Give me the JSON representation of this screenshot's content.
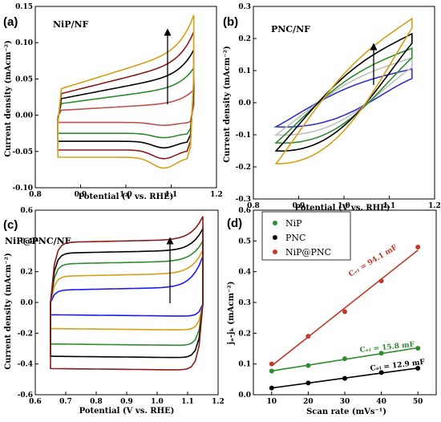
{
  "chart_data": [
    {
      "type": "line",
      "panel_tag": "(a)",
      "title": "NiP/NF",
      "xlabel": "Potential (V vs. RHE)",
      "ylabel": "Current density (mAcm⁻²)",
      "xlim": [
        0.8,
        1.2
      ],
      "ylim": [
        -0.1,
        0.15
      ],
      "xticks": [
        0.8,
        0.9,
        1.0,
        1.1,
        1.2
      ],
      "yticks": [
        -0.1,
        -0.05,
        0.0,
        0.05,
        0.1,
        0.15
      ],
      "xtick_labels": [
        "0.8",
        "0.9",
        "1.0",
        "1.1",
        "1.2"
      ],
      "ytick_labels": [
        "-0.10",
        "-0.05",
        "0.00",
        "0.05",
        "0.10",
        "0.15"
      ],
      "x_range": [
        0.85,
        1.15
      ],
      "series": [
        {
          "color": "#c0504d",
          "upper_mid": 0.012,
          "upper_end": 0.035,
          "lower_mid": -0.01,
          "lower_min": -0.014
        },
        {
          "color": "#2e8b2e",
          "upper_mid": 0.028,
          "upper_end": 0.065,
          "lower_mid": -0.025,
          "lower_min": -0.031
        },
        {
          "color": "#000000",
          "upper_mid": 0.04,
          "upper_end": 0.09,
          "lower_mid": -0.036,
          "lower_min": -0.045
        },
        {
          "color": "#8b1a1a",
          "upper_mid": 0.052,
          "upper_end": 0.115,
          "lower_mid": -0.048,
          "lower_min": -0.06
        },
        {
          "color": "#d4a017",
          "upper_mid": 0.064,
          "upper_end": 0.138,
          "lower_mid": -0.058,
          "lower_min": -0.073
        }
      ]
    },
    {
      "type": "line",
      "panel_tag": "(b)",
      "title": "PNC/NF",
      "xlabel": "Potential (V vs. RHE)",
      "ylabel": "Current density (mAcm⁻²)",
      "xlim": [
        0.8,
        1.2
      ],
      "ylim": [
        -0.3,
        0.3
      ],
      "xticks": [
        0.8,
        0.9,
        1.0,
        1.1,
        1.2
      ],
      "yticks": [
        -0.3,
        -0.2,
        -0.1,
        0.0,
        0.1,
        0.2,
        0.3
      ],
      "xtick_labels": [
        "0.8",
        "0.9",
        "1.0",
        "1.1",
        "1.2"
      ],
      "ytick_labels": [
        "-0.3",
        "-0.2",
        "-0.1",
        "0.0",
        "0.1",
        "0.2",
        "0.3"
      ],
      "x_range": [
        0.85,
        1.15
      ],
      "series": [
        {
          "color": "#3333cc",
          "low_start": -0.075,
          "top_end": 0.105
        },
        {
          "color": "#c0c0c0",
          "low_start": -0.1,
          "top_end": 0.14
        },
        {
          "color": "#2e8b2e",
          "low_start": -0.125,
          "top_end": 0.17
        },
        {
          "color": "#000000",
          "low_start": -0.15,
          "top_end": 0.215
        },
        {
          "color": "#d4a017",
          "low_start": -0.19,
          "top_end": 0.262
        }
      ]
    },
    {
      "type": "line",
      "panel_tag": "(c)",
      "title": "NiP@PNC/NF",
      "xlabel": "Potential (V vs. RHE)",
      "ylabel": "Current density (mAcm⁻²)",
      "xlim": [
        0.6,
        1.2
      ],
      "ylim": [
        -0.6,
        0.6
      ],
      "xticks": [
        0.6,
        0.7,
        0.8,
        0.9,
        1.0,
        1.1,
        1.2
      ],
      "yticks": [
        -0.6,
        -0.4,
        -0.2,
        0.0,
        0.2,
        0.4,
        0.6
      ],
      "xtick_labels": [
        "0.6",
        "0.7",
        "0.8",
        "0.9",
        "1.0",
        "1.1",
        "1.2"
      ],
      "ytick_labels": [
        "-0.6",
        "-0.4",
        "-0.2",
        "0.0",
        "0.2",
        "0.4",
        "0.6"
      ],
      "x_range": [
        0.65,
        1.15
      ],
      "series": [
        {
          "color": "#1a1aff",
          "upper": 0.08,
          "lower": -0.08,
          "end": 0.28
        },
        {
          "color": "#d4a017",
          "upper": 0.17,
          "lower": -0.17,
          "end": 0.32
        },
        {
          "color": "#2e8b2e",
          "upper": 0.25,
          "lower": -0.27,
          "end": 0.38
        },
        {
          "color": "#000000",
          "upper": 0.32,
          "lower": -0.35,
          "end": 0.46
        },
        {
          "color": "#8b1a1a",
          "upper": 0.39,
          "lower": -0.43,
          "end": 0.54
        }
      ]
    },
    {
      "type": "scatter",
      "panel_tag": "(d)",
      "xlabel": "Scan rate (mVs⁻¹)",
      "ylabel": "jₐ-jₖ (mAcm⁻²)",
      "xlim": [
        5,
        55
      ],
      "ylim": [
        0.0,
        0.6
      ],
      "xticks": [
        10,
        20,
        30,
        40,
        50
      ],
      "yticks": [
        0.0,
        0.1,
        0.2,
        0.3,
        0.4,
        0.5,
        0.6
      ],
      "xtick_labels": [
        "10",
        "20",
        "30",
        "40",
        "50"
      ],
      "ytick_labels": [
        "0.0",
        "0.1",
        "0.2",
        "0.3",
        "0.4",
        "0.5",
        "0.6"
      ],
      "x": [
        10,
        20,
        30,
        40,
        50
      ],
      "legend_position": "top-left",
      "series": [
        {
          "name": "NiP",
          "color": "#2e8b2e",
          "values": [
            0.077,
            0.095,
            0.117,
            0.135,
            0.151
          ],
          "annotation": "Cₑₗ = 15.8 mF"
        },
        {
          "name": "PNC",
          "color": "#000000",
          "values": [
            0.022,
            0.038,
            0.053,
            0.072,
            0.086
          ],
          "annotation": "Cₑₗ = 12.9 mF"
        },
        {
          "name": "NiP@PNC",
          "color": "#c0392b",
          "values": [
            0.1,
            0.19,
            0.27,
            0.37,
            0.48
          ],
          "annotation": "Cₑₗ = 94.1 mF"
        }
      ]
    }
  ]
}
